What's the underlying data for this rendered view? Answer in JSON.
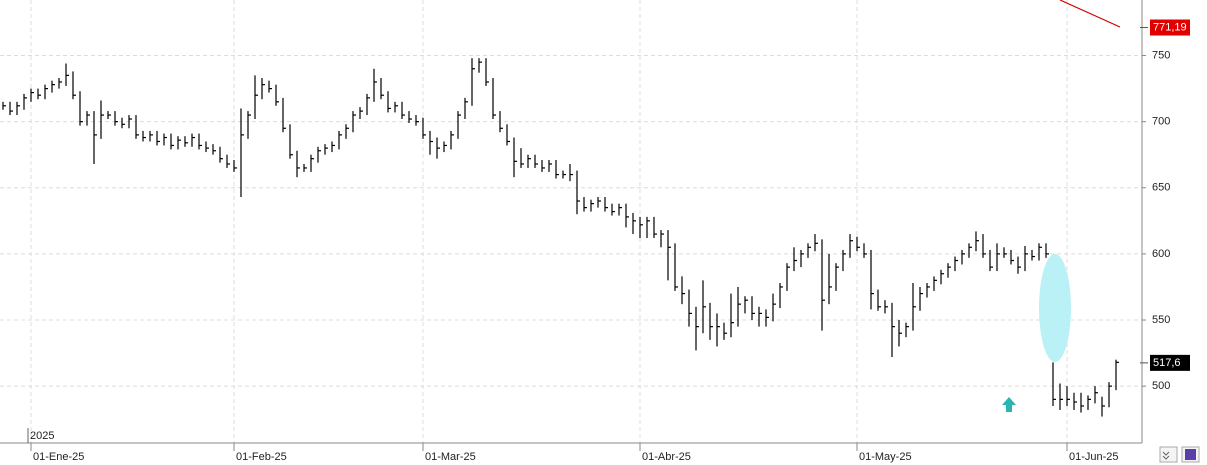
{
  "chart_data": {
    "type": "ohlc",
    "color": "#000000",
    "grid": true,
    "ylim": [
      457,
      792
    ],
    "yticks": [
      500,
      550,
      600,
      650,
      700,
      750
    ],
    "year_label": "2025",
    "price_labels": [
      {
        "value": 771.19,
        "label": "771,19",
        "color": "#e00000"
      },
      {
        "value": 517.6,
        "label": "517,6",
        "color": "#000000"
      }
    ],
    "categories": [
      null,
      null,
      null,
      null,
      "01-Ene-25",
      null,
      null,
      null,
      null,
      null,
      null,
      null,
      null,
      null,
      null,
      null,
      null,
      null,
      null,
      null,
      null,
      null,
      null,
      null,
      null,
      null,
      null,
      null,
      null,
      null,
      null,
      null,
      null,
      "01-Feb-25",
      null,
      null,
      null,
      null,
      null,
      null,
      null,
      null,
      null,
      null,
      null,
      null,
      null,
      null,
      null,
      null,
      null,
      null,
      null,
      null,
      null,
      null,
      null,
      null,
      null,
      null,
      "01-Mar-25",
      null,
      null,
      null,
      null,
      null,
      null,
      null,
      null,
      null,
      null,
      null,
      null,
      null,
      null,
      null,
      null,
      null,
      null,
      null,
      null,
      null,
      null,
      null,
      null,
      null,
      null,
      null,
      null,
      null,
      null,
      "01-Abr-25",
      null,
      null,
      null,
      null,
      null,
      null,
      null,
      null,
      null,
      null,
      null,
      null,
      null,
      null,
      null,
      null,
      null,
      null,
      null,
      null,
      null,
      null,
      null,
      null,
      null,
      null,
      null,
      null,
      null,
      null,
      "01-May-25",
      null,
      null,
      null,
      null,
      null,
      null,
      null,
      null,
      null,
      null,
      null,
      null,
      null,
      null,
      null,
      null,
      null,
      null,
      null,
      null,
      null,
      null,
      null,
      null,
      null,
      null,
      null,
      null,
      null,
      "01-Jun-25",
      null,
      null,
      null,
      null,
      null,
      null,
      null
    ],
    "high": [
      715,
      715,
      715,
      721,
      725,
      725,
      728,
      731,
      733,
      744,
      738,
      723,
      708,
      708,
      716,
      708,
      708,
      703,
      705,
      705,
      693,
      693,
      693,
      691,
      691,
      689,
      689,
      691,
      691,
      685,
      683,
      681,
      675,
      671,
      710,
      708,
      735,
      733,
      731,
      728,
      718,
      698,
      678,
      668,
      675,
      681,
      683,
      685,
      693,
      698,
      708,
      711,
      721,
      740,
      733,
      723,
      715,
      715,
      708,
      705,
      703,
      693,
      688,
      685,
      693,
      708,
      718,
      748,
      748,
      748,
      733,
      708,
      698,
      688,
      680,
      675,
      675,
      671,
      671,
      671,
      663,
      668,
      663,
      643,
      641,
      643,
      643,
      638,
      638,
      638,
      631,
      628,
      628,
      628,
      618,
      618,
      608,
      583,
      573,
      560,
      580,
      563,
      555,
      548,
      570,
      575,
      568,
      568,
      560,
      558,
      570,
      578,
      593,
      605,
      603,
      608,
      615,
      611,
      600,
      593,
      603,
      615,
      613,
      608,
      603,
      573,
      565,
      563,
      550,
      548,
      578,
      575,
      578,
      583,
      588,
      593,
      598,
      603,
      608,
      617,
      615,
      603,
      608,
      605,
      603,
      598,
      606,
      603,
      608,
      608,
      518,
      502,
      500,
      495,
      495,
      493,
      500,
      492,
      503,
      520
    ],
    "low": [
      709,
      705,
      705,
      709,
      715,
      717,
      717,
      722,
      725,
      727,
      717,
      697,
      697,
      668,
      687,
      702,
      697,
      695,
      695,
      687,
      685,
      685,
      682,
      682,
      679,
      679,
      681,
      681,
      679,
      677,
      675,
      669,
      665,
      662,
      643,
      687,
      702,
      717,
      722,
      712,
      692,
      672,
      658,
      662,
      662,
      669,
      675,
      677,
      679,
      687,
      692,
      702,
      705,
      715,
      717,
      707,
      707,
      702,
      699,
      697,
      687,
      675,
      672,
      677,
      679,
      687,
      702,
      712,
      737,
      727,
      702,
      692,
      682,
      658,
      665,
      665,
      665,
      662,
      662,
      657,
      657,
      655,
      630,
      632,
      632,
      635,
      632,
      629,
      629,
      620,
      615,
      612,
      612,
      612,
      605,
      580,
      572,
      562,
      545,
      527,
      540,
      535,
      530,
      535,
      537,
      545,
      555,
      550,
      545,
      545,
      549,
      559,
      572,
      587,
      590,
      597,
      602,
      542,
      562,
      572,
      587,
      597,
      602,
      597,
      558,
      557,
      555,
      522,
      530,
      537,
      542,
      557,
      567,
      572,
      577,
      582,
      587,
      592,
      597,
      602,
      597,
      587,
      587,
      597,
      592,
      585,
      587,
      595,
      595,
      597,
      485,
      482,
      485,
      482,
      480,
      482,
      487,
      477,
      484,
      497
    ],
    "close": [
      712,
      708,
      712,
      718,
      722,
      720,
      725,
      728,
      730,
      735,
      720,
      700,
      705,
      690,
      705,
      705,
      700,
      698,
      702,
      690,
      688,
      690,
      685,
      688,
      682,
      686,
      684,
      688,
      682,
      680,
      678,
      672,
      668,
      665,
      690,
      705,
      720,
      728,
      725,
      715,
      695,
      675,
      665,
      665,
      672,
      678,
      680,
      682,
      690,
      695,
      705,
      708,
      718,
      730,
      720,
      710,
      712,
      705,
      702,
      700,
      690,
      685,
      680,
      682,
      690,
      705,
      715,
      740,
      745,
      730,
      705,
      695,
      685,
      670,
      668,
      672,
      668,
      665,
      668,
      660,
      660,
      660,
      640,
      635,
      638,
      640,
      635,
      632,
      635,
      628,
      625,
      622,
      625,
      615,
      615,
      605,
      575,
      570,
      555,
      545,
      560,
      545,
      545,
      540,
      548,
      562,
      565,
      555,
      555,
      552,
      562,
      575,
      590,
      595,
      600,
      605,
      608,
      565,
      575,
      590,
      600,
      610,
      605,
      600,
      570,
      560,
      560,
      545,
      540,
      545,
      560,
      570,
      575,
      580,
      585,
      590,
      595,
      600,
      605,
      610,
      600,
      590,
      600,
      600,
      595,
      590,
      600,
      598,
      605,
      600,
      490,
      490,
      490,
      488,
      485,
      490,
      495,
      485,
      500,
      518
    ]
  }
}
